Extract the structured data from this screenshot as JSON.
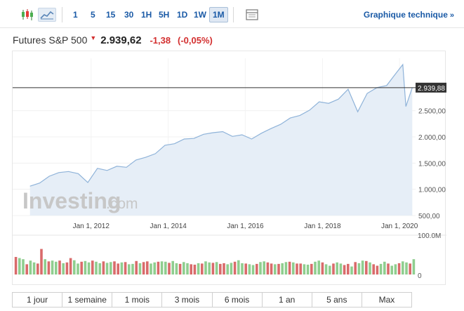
{
  "toolbar": {
    "icons": [
      "candlestick-icon",
      "area-chart-icon",
      "indicator-panel-icon"
    ],
    "intervals": [
      "1",
      "5",
      "15",
      "30",
      "1H",
      "5H",
      "1D",
      "1W",
      "1M"
    ],
    "active_interval": "1M",
    "tech_link": "Graphique technique",
    "tech_chevron": "»"
  },
  "quote": {
    "name": "Futures S&P 500",
    "price": "2.939,62",
    "change": "-1,38",
    "change_pct": "(-0,05%)",
    "down_color": "#d32f2f"
  },
  "watermark": {
    "brand": "Investing",
    "suffix": ".com"
  },
  "chart_data": {
    "type": "area",
    "x": [
      "2010-06",
      "2010-09",
      "2010-12",
      "2011-03",
      "2011-06",
      "2011-09",
      "2011-12",
      "2012-03",
      "2012-06",
      "2012-09",
      "2012-12",
      "2013-03",
      "2013-06",
      "2013-09",
      "2013-12",
      "2014-03",
      "2014-06",
      "2014-09",
      "2014-12",
      "2015-03",
      "2015-06",
      "2015-09",
      "2015-12",
      "2016-03",
      "2016-06",
      "2016-09",
      "2016-12",
      "2017-03",
      "2017-06",
      "2017-09",
      "2017-12",
      "2018-03",
      "2018-06",
      "2018-09",
      "2018-12",
      "2019-03",
      "2019-06",
      "2019-09",
      "2019-12",
      "2020-02",
      "2020-03",
      "2020-05"
    ],
    "y": [
      1060,
      1120,
      1250,
      1320,
      1340,
      1300,
      1130,
      1400,
      1360,
      1440,
      1420,
      1560,
      1610,
      1680,
      1840,
      1870,
      1960,
      1970,
      2050,
      2080,
      2100,
      2010,
      2040,
      1960,
      2070,
      2160,
      2240,
      2360,
      2410,
      2510,
      2670,
      2640,
      2720,
      2910,
      2480,
      2830,
      2940,
      2980,
      3220,
      3380,
      2580,
      2940
    ],
    "ylim": [
      500,
      3500
    ],
    "y_ticks": [
      "500,00",
      "1.000,00",
      "1.500,00",
      "2.000,00",
      "2.500,00"
    ],
    "x_ticks": [
      "Jan 1, 2012",
      "Jan 1, 2014",
      "Jan 1, 2016",
      "Jan 1, 2018",
      "Jan 1, 2020"
    ],
    "last_value": 2939.88,
    "last_label": "2.939,88",
    "line_color": "#8fb3d9",
    "fill_color": "#e6eef7",
    "grid": true
  },
  "volume_data": {
    "type": "bar",
    "y_max_label": "100.0M",
    "y_zero_label": "0",
    "values": [
      48,
      45,
      42,
      28,
      38,
      33,
      30,
      70,
      42,
      36,
      38,
      35,
      38,
      31,
      33,
      45,
      39,
      30,
      35,
      37,
      33,
      38,
      35,
      31,
      36,
      32,
      34,
      36,
      30,
      33,
      34,
      28,
      29,
      37,
      31,
      34,
      36,
      30,
      33,
      35,
      36,
      35,
      32,
      37,
      31,
      29,
      34,
      31,
      28,
      27,
      31,
      30,
      36,
      33,
      32,
      34,
      29,
      31,
      28,
      32,
      35,
      39,
      31,
      30,
      28,
      26,
      29,
      34,
      36,
      33,
      30,
      28,
      29,
      31,
      34,
      35,
      33,
      30,
      30,
      28,
      27,
      29,
      35,
      38,
      33,
      28,
      24,
      30,
      33,
      30,
      26,
      29,
      22,
      34,
      31,
      38,
      37,
      33,
      28,
      24,
      29,
      35,
      30,
      24,
      28,
      31,
      36,
      33,
      30,
      42
    ],
    "up_color": "#8fce8f",
    "down_color": "#d96b6b"
  },
  "ranges": [
    "1 jour",
    "1 semaine",
    "1 mois",
    "3 mois",
    "6 mois",
    "1 an",
    "5 ans",
    "Max"
  ]
}
